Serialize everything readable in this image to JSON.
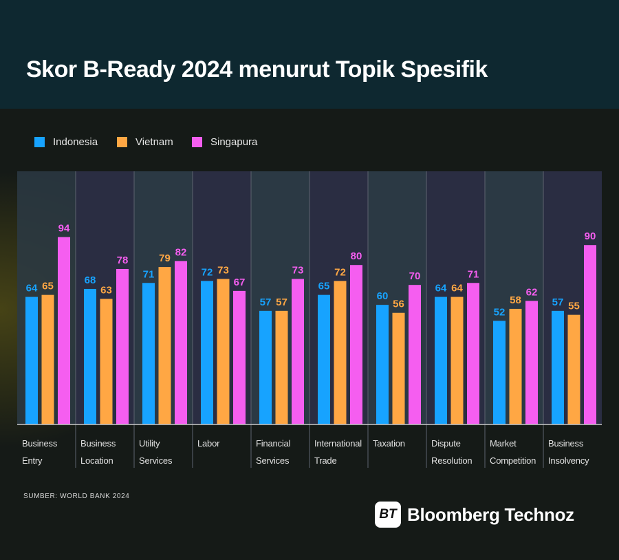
{
  "title": "Skor B-Ready 2024 menurut Topik Spesifik",
  "source": "SUMBER: WORLD BANK 2024",
  "logo": {
    "mark": "BT",
    "text": "Bloomberg Technoz"
  },
  "colors": {
    "header_bg": "#0e2830",
    "background": "#151a17"
  },
  "chart_data": {
    "type": "bar",
    "title": "Skor B-Ready 2024 menurut Topik Spesifik",
    "categories": [
      [
        "Business",
        "Entry"
      ],
      [
        "Business",
        "Location"
      ],
      [
        "Utility",
        "Services"
      ],
      [
        "Labor"
      ],
      [
        "Financial",
        "Services"
      ],
      [
        "International",
        "Trade"
      ],
      [
        "Taxation"
      ],
      [
        "Dispute",
        "Resolution"
      ],
      [
        "Market",
        "Competition"
      ],
      [
        "Business",
        "Insolvency"
      ]
    ],
    "series": [
      {
        "name": "Indonesia",
        "color": "#17a3ff",
        "values": [
          64,
          68,
          71,
          72,
          57,
          65,
          60,
          64,
          52,
          57
        ]
      },
      {
        "name": "Vietnam",
        "color": "#ffa744",
        "values": [
          65,
          63,
          79,
          73,
          57,
          72,
          56,
          64,
          58,
          55
        ]
      },
      {
        "name": "Singapura",
        "color": "#f55ef0",
        "values": [
          94,
          78,
          82,
          67,
          73,
          80,
          70,
          71,
          62,
          90
        ]
      }
    ],
    "ylim": [
      0,
      127
    ],
    "data_labels": true,
    "y_axis_shown": false,
    "grid": false,
    "legend_position": "top-left"
  }
}
